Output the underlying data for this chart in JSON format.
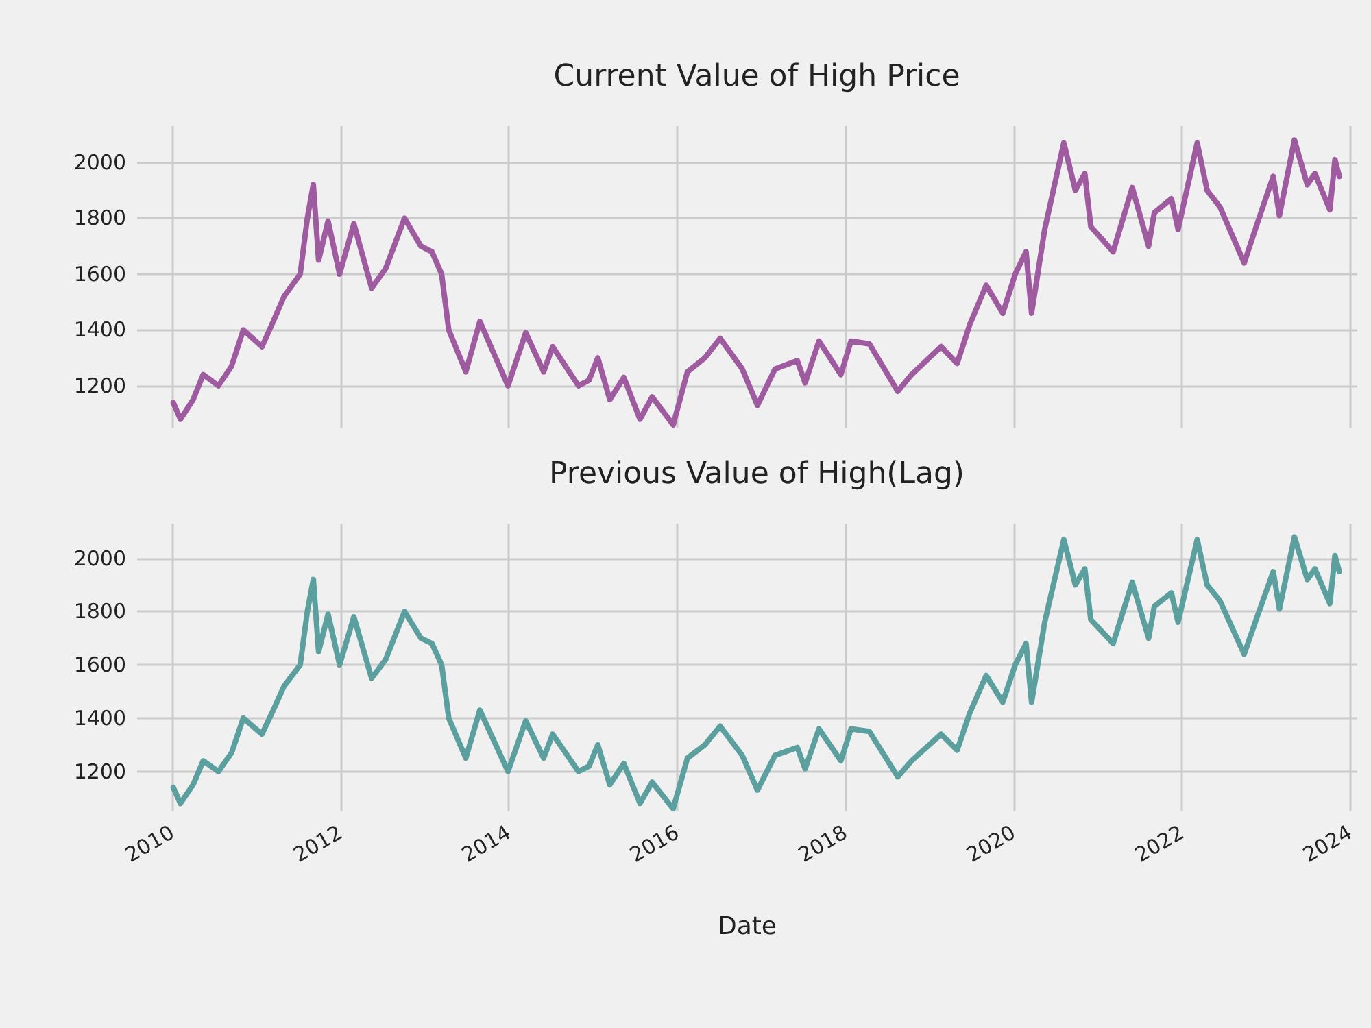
{
  "chart_data": [
    {
      "type": "line",
      "title": "Current Value of High Price",
      "x": [
        "2010-01-05",
        "2010-02-05",
        "2010-04-01",
        "2010-05-15",
        "2010-07-20",
        "2010-09-15",
        "2010-11-05",
        "2011-01-25",
        "2011-03-15",
        "2011-05-01",
        "2011-07-10",
        "2011-08-10",
        "2011-09-05",
        "2011-09-28",
        "2011-11-08",
        "2011-12-28",
        "2012-02-28",
        "2012-05-15",
        "2012-07-15",
        "2012-10-05",
        "2012-12-15",
        "2013-02-01",
        "2013-03-15",
        "2013-04-15",
        "2013-06-28",
        "2013-08-28",
        "2013-12-28",
        "2014-03-15",
        "2014-06-01",
        "2014-07-10",
        "2014-10-30",
        "2014-12-15",
        "2015-01-22",
        "2015-03-15",
        "2015-05-15",
        "2015-07-24",
        "2015-09-15",
        "2015-12-15",
        "2016-02-15",
        "2016-05-01",
        "2016-07-06",
        "2016-10-10",
        "2016-12-15",
        "2017-03-01",
        "2017-06-06",
        "2017-07-10",
        "2017-09-08",
        "2017-12-12",
        "2018-01-25",
        "2018-04-15",
        "2018-08-16",
        "2018-10-15",
        "2019-02-20",
        "2019-05-01",
        "2019-06-25",
        "2019-09-04",
        "2019-11-15",
        "2020-01-08",
        "2020-02-24",
        "2020-03-19",
        "2020-05-15",
        "2020-08-06",
        "2020-09-25",
        "2020-11-05",
        "2020-12-01",
        "2021-03-08",
        "2021-05-30",
        "2021-08-09",
        "2021-09-03",
        "2021-11-16",
        "2021-12-15",
        "2022-03-08",
        "2022-04-20",
        "2022-06-15",
        "2022-09-28",
        "2022-11-15",
        "2023-02-01",
        "2023-02-28",
        "2023-05-04",
        "2023-06-29",
        "2023-08-01",
        "2023-10-05",
        "2023-10-27",
        "2023-11-15"
      ],
      "series": [
        {
          "color": "#9f5b9f",
          "values": [
            1140,
            1080,
            1150,
            1240,
            1200,
            1270,
            1400,
            1340,
            1430,
            1520,
            1600,
            1800,
            1920,
            1650,
            1790,
            1600,
            1780,
            1550,
            1620,
            1800,
            1700,
            1680,
            1600,
            1400,
            1250,
            1430,
            1200,
            1390,
            1250,
            1340,
            1200,
            1220,
            1300,
            1150,
            1230,
            1080,
            1160,
            1060,
            1250,
            1300,
            1370,
            1260,
            1130,
            1260,
            1290,
            1210,
            1360,
            1240,
            1360,
            1350,
            1180,
            1240,
            1340,
            1280,
            1420,
            1560,
            1460,
            1600,
            1680,
            1460,
            1760,
            2070,
            1900,
            1960,
            1770,
            1680,
            1910,
            1700,
            1820,
            1870,
            1760,
            2070,
            1900,
            1840,
            1640,
            1760,
            1950,
            1810,
            2080,
            1920,
            1960,
            1830,
            2010,
            1950
          ]
        }
      ],
      "xlim": [
        "2009-08",
        "2024-02"
      ],
      "xticks": [
        "2010",
        "2012",
        "2014",
        "2016",
        "2018",
        "2020",
        "2022",
        "2024"
      ],
      "ylim": [
        1050,
        2130
      ],
      "yticks": [
        1200,
        1400,
        1600,
        1800,
        2000
      ],
      "grid": true,
      "tick_labels": "y",
      "line_style": "solid",
      "marker": "none"
    },
    {
      "type": "line",
      "title": "Previous Value of High(Lag)",
      "xlabel": "Date",
      "x": [
        "2010-01-05",
        "2010-02-05",
        "2010-04-01",
        "2010-05-15",
        "2010-07-20",
        "2010-09-15",
        "2010-11-05",
        "2011-01-25",
        "2011-03-15",
        "2011-05-01",
        "2011-07-10",
        "2011-08-10",
        "2011-09-05",
        "2011-09-28",
        "2011-11-08",
        "2011-12-28",
        "2012-02-28",
        "2012-05-15",
        "2012-07-15",
        "2012-10-05",
        "2012-12-15",
        "2013-02-01",
        "2013-03-15",
        "2013-04-15",
        "2013-06-28",
        "2013-08-28",
        "2013-12-28",
        "2014-03-15",
        "2014-06-01",
        "2014-07-10",
        "2014-10-30",
        "2014-12-15",
        "2015-01-22",
        "2015-03-15",
        "2015-05-15",
        "2015-07-24",
        "2015-09-15",
        "2015-12-15",
        "2016-02-15",
        "2016-05-01",
        "2016-07-06",
        "2016-10-10",
        "2016-12-15",
        "2017-03-01",
        "2017-06-06",
        "2017-07-10",
        "2017-09-08",
        "2017-12-12",
        "2018-01-25",
        "2018-04-15",
        "2018-08-16",
        "2018-10-15",
        "2019-02-20",
        "2019-05-01",
        "2019-06-25",
        "2019-09-04",
        "2019-11-15",
        "2020-01-08",
        "2020-02-24",
        "2020-03-19",
        "2020-05-15",
        "2020-08-06",
        "2020-09-25",
        "2020-11-05",
        "2020-12-01",
        "2021-03-08",
        "2021-05-30",
        "2021-08-09",
        "2021-09-03",
        "2021-11-16",
        "2021-12-15",
        "2022-03-08",
        "2022-04-20",
        "2022-06-15",
        "2022-09-28",
        "2022-11-15",
        "2023-02-01",
        "2023-02-28",
        "2023-05-04",
        "2023-06-29",
        "2023-08-01",
        "2023-10-05",
        "2023-10-27",
        "2023-11-15"
      ],
      "series": [
        {
          "color": "#5c9f9f",
          "values": [
            1140,
            1080,
            1150,
            1240,
            1200,
            1270,
            1400,
            1340,
            1430,
            1520,
            1600,
            1800,
            1920,
            1650,
            1790,
            1600,
            1780,
            1550,
            1620,
            1800,
            1700,
            1680,
            1600,
            1400,
            1250,
            1430,
            1200,
            1390,
            1250,
            1340,
            1200,
            1220,
            1300,
            1150,
            1230,
            1080,
            1160,
            1060,
            1250,
            1300,
            1370,
            1260,
            1130,
            1260,
            1290,
            1210,
            1360,
            1240,
            1360,
            1350,
            1180,
            1240,
            1340,
            1280,
            1420,
            1560,
            1460,
            1600,
            1680,
            1460,
            1760,
            2070,
            1900,
            1960,
            1770,
            1680,
            1910,
            1700,
            1820,
            1870,
            1760,
            2070,
            1900,
            1840,
            1640,
            1760,
            1950,
            1810,
            2080,
            1920,
            1960,
            1830,
            2010,
            1950
          ]
        }
      ],
      "xlim": [
        "2009-08",
        "2024-02"
      ],
      "xticks": [
        "2010",
        "2012",
        "2014",
        "2016",
        "2018",
        "2020",
        "2022",
        "2024"
      ],
      "ylim": [
        1050,
        2130
      ],
      "yticks": [
        1200,
        1400,
        1600,
        1800,
        2000
      ],
      "grid": true,
      "line_style": "solid",
      "marker": "none"
    }
  ]
}
